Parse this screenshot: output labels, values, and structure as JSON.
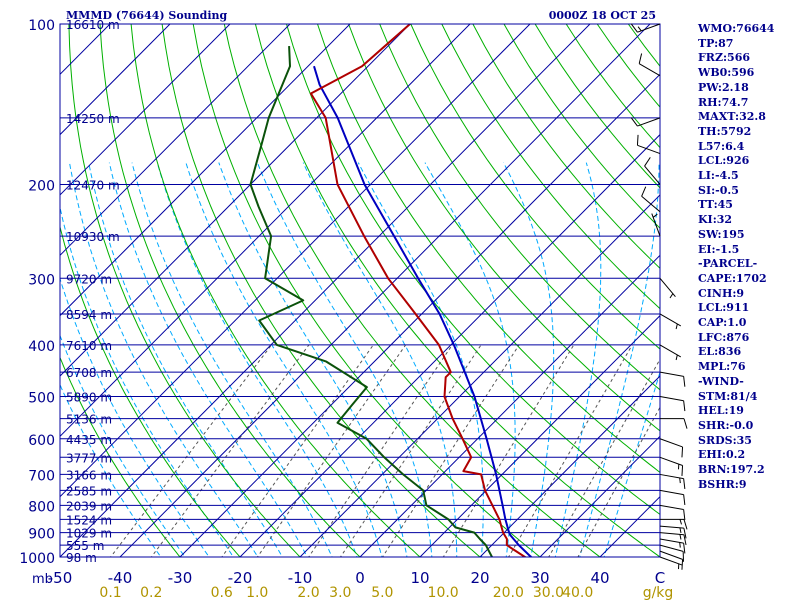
{
  "header": {
    "title": "MMMD (76644) Sounding",
    "valid": "0000Z 18 OCT 25"
  },
  "colors": {
    "isobar": "#0000a0",
    "isotherm": "#0000a0",
    "dry_adiabat": "#00b000",
    "moist_adiabat": "#00aaff",
    "mixing_ratio": "#555555",
    "temperature": "#b00000",
    "dewpoint": "#0b520b",
    "parcel": "#0000c0",
    "mixing_ratio_labels": "#b09400",
    "text": "#00008c"
  },
  "indices": [
    "WMO:76644",
    "TP:87",
    "FRZ:566",
    "WB0:596",
    "PW:2.18",
    "RH:74.7",
    "MAXT:32.8",
    "TH:5792",
    "L57:6.4",
    "LCL:926",
    "LI:-4.5",
    "SI:-0.5",
    "TT:45",
    "KI:32",
    "SW:195",
    "EI:-1.5",
    "-PARCEL-",
    "CAPE:1702",
    "CINH:9",
    "LCL:911",
    "CAP:1.0",
    "LFC:876",
    "EL:836",
    "MPL:76",
    "-WIND-",
    "STM:81/4",
    "HEL:19",
    "SHR:-0.0",
    "SRDS:35",
    "EHI:0.2",
    "BRN:197.2",
    "BSHR:9"
  ],
  "chart_data": {
    "type": "line",
    "subtype": "skew-T log-P",
    "p_range": [
      1000,
      100
    ],
    "t_range_at_bottom": [
      -50,
      50
    ],
    "grid": true,
    "pressure_axis": {
      "unit": "mb",
      "ticks": [
        {
          "p": 1000,
          "label": "1000"
        },
        {
          "p": 900,
          "label": "900"
        },
        {
          "p": 800,
          "label": "800"
        },
        {
          "p": 700,
          "label": "700"
        },
        {
          "p": 600,
          "label": "600"
        },
        {
          "p": 500,
          "label": "500"
        },
        {
          "p": 400,
          "label": "400"
        },
        {
          "p": 300,
          "label": "300"
        },
        {
          "p": 200,
          "label": "200"
        },
        {
          "p": 100,
          "label": "100"
        }
      ]
    },
    "temperature_axis": {
      "ticks": [
        -50,
        -40,
        -30,
        -20,
        -10,
        0,
        10,
        20,
        30,
        40,
        50
      ],
      "labels": [
        "-50",
        "-40",
        "-30",
        "-20",
        "-10",
        "0",
        "10",
        "20",
        "30",
        "40",
        "C"
      ]
    },
    "mixing_ratio_axis": {
      "unit": "g/kg",
      "values": [
        0.1,
        0.2,
        0.6,
        1.0,
        2.0,
        3.0,
        5.0,
        10.0,
        20.0,
        30.0,
        40.0
      ],
      "labels": [
        "0.1",
        "0.2",
        "0.6",
        "1.0",
        "2.0",
        "3.0",
        "5.0",
        "10.0",
        "20.0",
        "30.0",
        "40.0"
      ]
    },
    "heights": [
      {
        "p": 100,
        "label": "16610 m"
      },
      {
        "p": 150,
        "label": "14250 m"
      },
      {
        "p": 200,
        "label": "12470 m"
      },
      {
        "p": 250,
        "label": "10930 m"
      },
      {
        "p": 300,
        "label": "9720 m"
      },
      {
        "p": 350,
        "label": "8594 m"
      },
      {
        "p": 400,
        "label": "7610 m"
      },
      {
        "p": 450,
        "label": "6708 m"
      },
      {
        "p": 500,
        "label": "5890 m"
      },
      {
        "p": 550,
        "label": "5136 m"
      },
      {
        "p": 600,
        "label": "4435 m"
      },
      {
        "p": 650,
        "label": "3777 m"
      },
      {
        "p": 700,
        "label": "3166 m"
      },
      {
        "p": 750,
        "label": "2585 m"
      },
      {
        "p": 800,
        "label": "2039 m"
      },
      {
        "p": 850,
        "label": "1524 m"
      },
      {
        "p": 900,
        "label": "1029 m"
      },
      {
        "p": 950,
        "label": "555 m"
      },
      {
        "p": 1000,
        "label": "98 m"
      }
    ],
    "temperature": [
      [
        1010,
        28.5
      ],
      [
        1000,
        27.5
      ],
      [
        970,
        24.5
      ],
      [
        950,
        22.5
      ],
      [
        925,
        21.5
      ],
      [
        900,
        19.8
      ],
      [
        850,
        17.0
      ],
      [
        800,
        13.5
      ],
      [
        750,
        9.8
      ],
      [
        700,
        6.5
      ],
      [
        690,
        3.0
      ],
      [
        650,
        2.0
      ],
      [
        600,
        -2.5
      ],
      [
        550,
        -7.5
      ],
      [
        500,
        -12.5
      ],
      [
        460,
        -15.5
      ],
      [
        450,
        -15.5
      ],
      [
        400,
        -22.0
      ],
      [
        350,
        -31.0
      ],
      [
        300,
        -41.5
      ],
      [
        250,
        -52.5
      ],
      [
        200,
        -65.5
      ],
      [
        150,
        -78.5
      ],
      [
        135,
        -85.0
      ],
      [
        120,
        -81.0
      ],
      [
        100,
        -80.0
      ]
    ],
    "dewpoint": [
      [
        1010,
        22.5
      ],
      [
        1000,
        22.0
      ],
      [
        950,
        19.0
      ],
      [
        925,
        17.0
      ],
      [
        900,
        15.0
      ],
      [
        880,
        11.0
      ],
      [
        850,
        8.5
      ],
      [
        800,
        2.5
      ],
      [
        750,
        -0.5
      ],
      [
        700,
        -6.5
      ],
      [
        650,
        -12.5
      ],
      [
        600,
        -18.5
      ],
      [
        560,
        -26.0
      ],
      [
        520,
        -26.5
      ],
      [
        480,
        -27.0
      ],
      [
        430,
        -38.0
      ],
      [
        400,
        -49.0
      ],
      [
        360,
        -56.0
      ],
      [
        330,
        -52.0
      ],
      [
        300,
        -62.0
      ],
      [
        250,
        -68.0
      ],
      [
        220,
        -75.0
      ],
      [
        200,
        -80.0
      ],
      [
        170,
        -84.5
      ],
      [
        150,
        -88.0
      ],
      [
        120,
        -93.0
      ],
      [
        110,
        -96.5
      ]
    ],
    "parcel": [
      [
        1010,
        29.5
      ],
      [
        1000,
        28.5
      ],
      [
        950,
        24.5
      ],
      [
        911,
        21.5
      ],
      [
        900,
        20.8
      ],
      [
        850,
        18.0
      ],
      [
        800,
        15.2
      ],
      [
        700,
        9.0
      ],
      [
        600,
        1.5
      ],
      [
        500,
        -7.5
      ],
      [
        400,
        -19.5
      ],
      [
        350,
        -27.0
      ],
      [
        300,
        -36.5
      ],
      [
        250,
        -47.5
      ],
      [
        200,
        -61.0
      ],
      [
        150,
        -76.5
      ],
      [
        130,
        -85.0
      ],
      [
        120,
        -89.0
      ]
    ],
    "winds": [
      {
        "p": 1000,
        "dir": 110,
        "kt": 5
      },
      {
        "p": 975,
        "dir": 110,
        "kt": 10
      },
      {
        "p": 950,
        "dir": 105,
        "kt": 10
      },
      {
        "p": 925,
        "dir": 100,
        "kt": 15
      },
      {
        "p": 900,
        "dir": 95,
        "kt": 15
      },
      {
        "p": 875,
        "dir": 95,
        "kt": 15
      },
      {
        "p": 850,
        "dir": 90,
        "kt": 15
      },
      {
        "p": 800,
        "dir": 100,
        "kt": 10
      },
      {
        "p": 750,
        "dir": 100,
        "kt": 10
      },
      {
        "p": 700,
        "dir": 100,
        "kt": 15
      },
      {
        "p": 650,
        "dir": 110,
        "kt": 15
      },
      {
        "p": 600,
        "dir": 110,
        "kt": 10
      },
      {
        "p": 550,
        "dir": 90,
        "kt": 10
      },
      {
        "p": 500,
        "dir": 100,
        "kt": 10
      },
      {
        "p": 450,
        "dir": 100,
        "kt": 10
      },
      {
        "p": 400,
        "dir": 120,
        "kt": 5
      },
      {
        "p": 350,
        "dir": 120,
        "kt": 5
      },
      {
        "p": 300,
        "dir": 140,
        "kt": 5
      },
      {
        "p": 250,
        "dir": 340,
        "kt": 5
      },
      {
        "p": 225,
        "dir": 310,
        "kt": 10
      },
      {
        "p": 200,
        "dir": 320,
        "kt": 10
      },
      {
        "p": 175,
        "dir": 290,
        "kt": 10
      },
      {
        "p": 150,
        "dir": 250,
        "kt": 10
      },
      {
        "p": 125,
        "dir": 300,
        "kt": 10
      },
      {
        "p": 100,
        "dir": 250,
        "kt": 15
      }
    ]
  }
}
